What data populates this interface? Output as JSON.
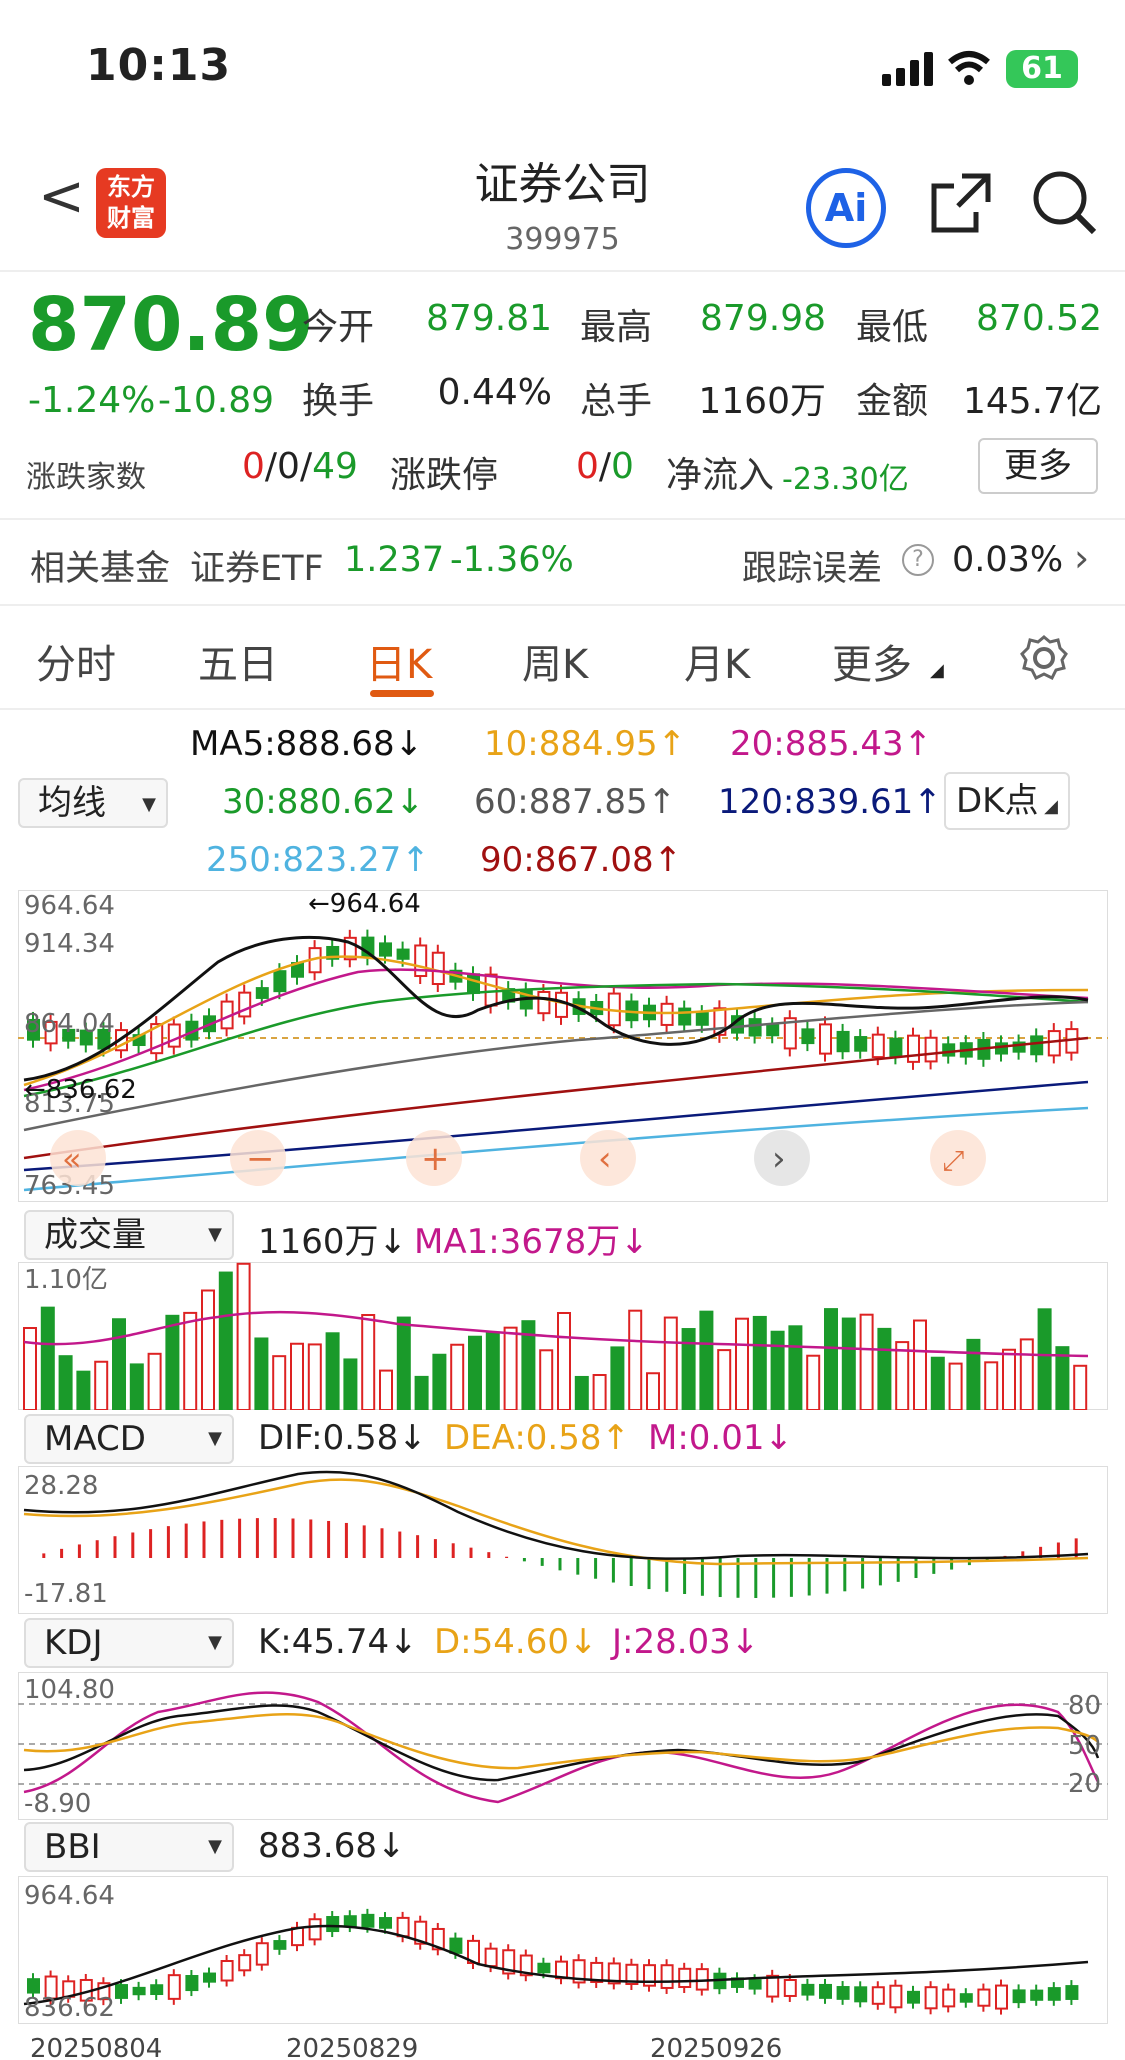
{
  "status": {
    "time": "10:13",
    "battery": "61"
  },
  "header": {
    "back_glyph": "<",
    "logo_text": "东方财富",
    "title": "证券公司",
    "code": "399975",
    "ai_label": "Ai"
  },
  "quote": {
    "price": "870.89",
    "change_pct": "-1.24%",
    "change": "-10.89",
    "open_label": "今开",
    "open": "879.81",
    "high_label": "最高",
    "high": "879.98",
    "low_label": "最低",
    "low": "870.52",
    "turnover_label": "换手",
    "turnover": "0.44%",
    "volume_label": "总手",
    "volume": "1160万",
    "amount_label": "金额",
    "amount": "145.7亿",
    "updown_label": "涨跌家数",
    "up": "0",
    "flat": "/0/",
    "down": "49",
    "limit_label": "涨跌停",
    "limit_up": "0",
    "limit_sep": "/",
    "limit_down": "0",
    "netflow_label": "净流入",
    "netflow": "-23.30亿",
    "more_label": "更多"
  },
  "fund": {
    "label": "相关基金",
    "name": "证券ETF",
    "price": "1.237",
    "pct": "-1.36%",
    "track_label": "跟踪误差",
    "track_value": "0.03%"
  },
  "tabs": [
    "分时",
    "五日",
    "日K",
    "周K",
    "月K",
    "更多"
  ],
  "active_tab": "日K",
  "ma_panel": {
    "selector": "均线",
    "dk_label": "DK点",
    "ma5": "MA5:888.68↓",
    "ma10": "10:884.95↑",
    "ma20": "20:885.43↑",
    "ma30": "30:880.62↓",
    "ma60": "60:887.85↑",
    "ma120": "120:839.61↑",
    "ma250": "250:823.27↑",
    "ma90": "90:867.08↑"
  },
  "kline": {
    "y_top": "964.64",
    "y_2": "914.34",
    "y_3": "864.04",
    "y_4": "813.75",
    "y_bottom": "763.45",
    "high_mark": "964.64",
    "low_mark": "836.62"
  },
  "volume": {
    "selector": "成交量",
    "value": "1160万↓",
    "ma1": "MA1:3678万↓",
    "y_top": "1.10亿"
  },
  "macd": {
    "selector": "MACD",
    "dif": "DIF:0.58↓",
    "dea": "DEA:0.58↑",
    "m": "M:0.01↓",
    "y_top": "28.28",
    "y_bottom": "-17.81"
  },
  "kdj": {
    "selector": "KDJ",
    "k": "K:45.74↓",
    "d": "D:54.60↓",
    "j": "J:28.03↓",
    "y_top": "104.80",
    "y_bottom": "-8.90",
    "lvl80": "80",
    "lvl50": "50",
    "lvl20": "20"
  },
  "bbi": {
    "selector": "BBI",
    "value": "883.68↓",
    "y_top": "964.64",
    "y_bottom": "836.62"
  },
  "dates": [
    "20250804",
    "20250829",
    "20250926"
  ],
  "colors": {
    "up": "#d22",
    "down": "#1a9a2a",
    "accent": "#e05a12",
    "ma5": "#111",
    "ma10": "#e8a317",
    "ma20": "#c2188b",
    "ma30": "#1a9a2a",
    "ma60": "#666",
    "ma120": "#0a1a7a",
    "ma250": "#4fb3e0",
    "ma90": "#a01010"
  }
}
